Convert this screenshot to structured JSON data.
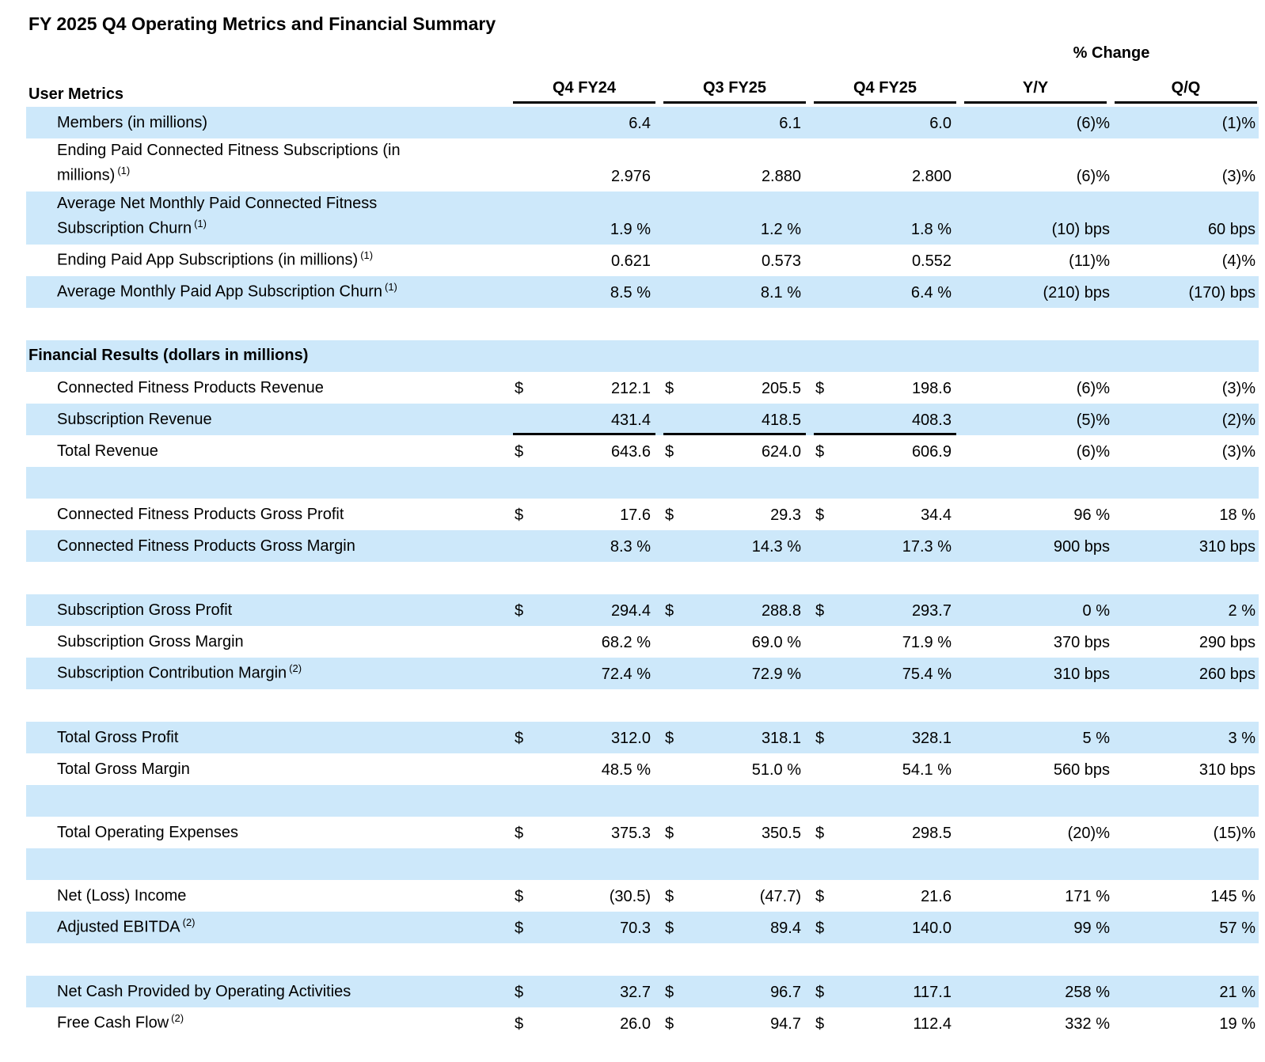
{
  "page_title": "FY 2025 Q4 Operating Metrics and Financial Summary",
  "table": {
    "change_header": "% Change",
    "currency": "$",
    "columns": {
      "label": "User Metrics",
      "periods": [
        "Q4 FY24",
        "Q3 FY25",
        "Q4 FY25"
      ],
      "changes": [
        "Y/Y",
        "Q/Q"
      ]
    },
    "colors": {
      "row_highlight": "#cde8fa",
      "text": "#000000",
      "rule": "#000000"
    },
    "rows": [
      {
        "type": "data",
        "highlight": true,
        "twoline": false,
        "label": "Members (in millions)",
        "sup": "",
        "dollar": false,
        "underline": false,
        "values": [
          "6.4",
          "6.1",
          "6.0"
        ],
        "yy": "(6)%",
        "qq": "(1)%"
      },
      {
        "type": "data",
        "highlight": false,
        "twoline": true,
        "label": "Ending Paid Connected Fitness Subscriptions (in millions)",
        "sup": "(1)",
        "dollar": false,
        "underline": false,
        "values": [
          "2.976",
          "2.880",
          "2.800"
        ],
        "yy": "(6)%",
        "qq": "(3)%"
      },
      {
        "type": "data",
        "highlight": true,
        "twoline": true,
        "label": "Average Net Monthly Paid Connected Fitness Subscription Churn",
        "sup": "(1)",
        "dollar": false,
        "underline": false,
        "values": [
          "1.9 %",
          "1.2 %",
          "1.8 %"
        ],
        "yy": "(10) bps",
        "qq": "60 bps"
      },
      {
        "type": "data",
        "highlight": false,
        "twoline": false,
        "label": "Ending Paid App Subscriptions (in millions)",
        "sup": "(1)",
        "dollar": false,
        "underline": false,
        "values": [
          "0.621",
          "0.573",
          "0.552"
        ],
        "yy": "(11)%",
        "qq": "(4)%"
      },
      {
        "type": "data",
        "highlight": true,
        "twoline": false,
        "label": "Average Monthly Paid App Subscription Churn",
        "sup": "(1)",
        "dollar": false,
        "underline": false,
        "values": [
          "8.5 %",
          "8.1 %",
          "6.4 %"
        ],
        "yy": "(210) bps",
        "qq": "(170) bps"
      },
      {
        "type": "spacer"
      },
      {
        "type": "section",
        "highlight": true,
        "label": "Financial Results (dollars in millions)"
      },
      {
        "type": "data",
        "highlight": false,
        "twoline": false,
        "label": "Connected Fitness Products Revenue",
        "sup": "",
        "dollar": true,
        "underline": false,
        "values": [
          "212.1",
          "205.5",
          "198.6"
        ],
        "yy": "(6)%",
        "qq": "(3)%"
      },
      {
        "type": "data",
        "highlight": true,
        "twoline": false,
        "label": "Subscription Revenue",
        "sup": "",
        "dollar": false,
        "underline": true,
        "values": [
          "431.4",
          "418.5",
          "408.3"
        ],
        "yy": "(5)%",
        "qq": "(2)%"
      },
      {
        "type": "data",
        "highlight": false,
        "twoline": false,
        "label": "Total Revenue",
        "sup": "",
        "dollar": true,
        "underline": false,
        "values": [
          "643.6",
          "624.0",
          "606.9"
        ],
        "yy": "(6)%",
        "qq": "(3)%"
      },
      {
        "type": "empty",
        "highlight": true
      },
      {
        "type": "data",
        "highlight": false,
        "twoline": false,
        "label": "Connected Fitness Products Gross Profit",
        "sup": "",
        "dollar": true,
        "underline": false,
        "values": [
          "17.6",
          "29.3",
          "34.4"
        ],
        "yy": "96 %",
        "qq": "18 %"
      },
      {
        "type": "data",
        "highlight": true,
        "twoline": false,
        "label": "Connected Fitness Products Gross Margin",
        "sup": "",
        "dollar": false,
        "underline": false,
        "values": [
          "8.3 %",
          "14.3 %",
          "17.3 %"
        ],
        "yy": "900 bps",
        "qq": "310 bps"
      },
      {
        "type": "spacer"
      },
      {
        "type": "data",
        "highlight": true,
        "twoline": false,
        "label": "Subscription Gross Profit",
        "sup": "",
        "dollar": true,
        "underline": false,
        "values": [
          "294.4",
          "288.8",
          "293.7"
        ],
        "yy": "0 %",
        "qq": "2 %"
      },
      {
        "type": "data",
        "highlight": false,
        "twoline": false,
        "label": "Subscription Gross Margin",
        "sup": "",
        "dollar": false,
        "underline": false,
        "values": [
          "68.2 %",
          "69.0 %",
          "71.9 %"
        ],
        "yy": "370 bps",
        "qq": "290 bps"
      },
      {
        "type": "data",
        "highlight": true,
        "twoline": false,
        "label": "Subscription Contribution Margin",
        "sup": "(2)",
        "dollar": false,
        "underline": false,
        "values": [
          "72.4 %",
          "72.9 %",
          "75.4 %"
        ],
        "yy": "310 bps",
        "qq": "260 bps"
      },
      {
        "type": "spacer"
      },
      {
        "type": "data",
        "highlight": true,
        "twoline": false,
        "label": "Total Gross Profit",
        "sup": "",
        "dollar": true,
        "underline": false,
        "values": [
          "312.0",
          "318.1",
          "328.1"
        ],
        "yy": "5 %",
        "qq": "3 %"
      },
      {
        "type": "data",
        "highlight": false,
        "twoline": false,
        "label": "Total Gross Margin",
        "sup": "",
        "dollar": false,
        "underline": false,
        "values": [
          "48.5 %",
          "51.0 %",
          "54.1 %"
        ],
        "yy": "560 bps",
        "qq": "310 bps"
      },
      {
        "type": "empty",
        "highlight": true
      },
      {
        "type": "data",
        "highlight": false,
        "twoline": false,
        "label": "Total Operating Expenses",
        "sup": "",
        "dollar": true,
        "underline": false,
        "values": [
          "375.3",
          "350.5",
          "298.5"
        ],
        "yy": "(20)%",
        "qq": "(15)%"
      },
      {
        "type": "empty",
        "highlight": true
      },
      {
        "type": "data",
        "highlight": false,
        "twoline": false,
        "label": "Net (Loss) Income",
        "sup": "",
        "dollar": true,
        "underline": false,
        "values": [
          "(30.5)",
          "(47.7)",
          "21.6"
        ],
        "yy": "171 %",
        "qq": "145 %"
      },
      {
        "type": "data",
        "highlight": true,
        "twoline": false,
        "label": "Adjusted EBITDA",
        "sup": "(2)",
        "dollar": true,
        "underline": false,
        "values": [
          "70.3",
          "89.4",
          "140.0"
        ],
        "yy": "99 %",
        "qq": "57 %"
      },
      {
        "type": "spacer"
      },
      {
        "type": "data",
        "highlight": true,
        "twoline": false,
        "label": "Net Cash Provided by Operating Activities",
        "sup": "",
        "dollar": true,
        "underline": false,
        "values": [
          "32.7",
          "96.7",
          "117.1"
        ],
        "yy": "258 %",
        "qq": "21 %"
      },
      {
        "type": "data",
        "highlight": false,
        "twoline": false,
        "label": "Free Cash Flow",
        "sup": "(2)",
        "dollar": true,
        "underline": false,
        "values": [
          "26.0",
          "94.7",
          "112.4"
        ],
        "yy": "332 %",
        "qq": "19 %"
      }
    ]
  }
}
